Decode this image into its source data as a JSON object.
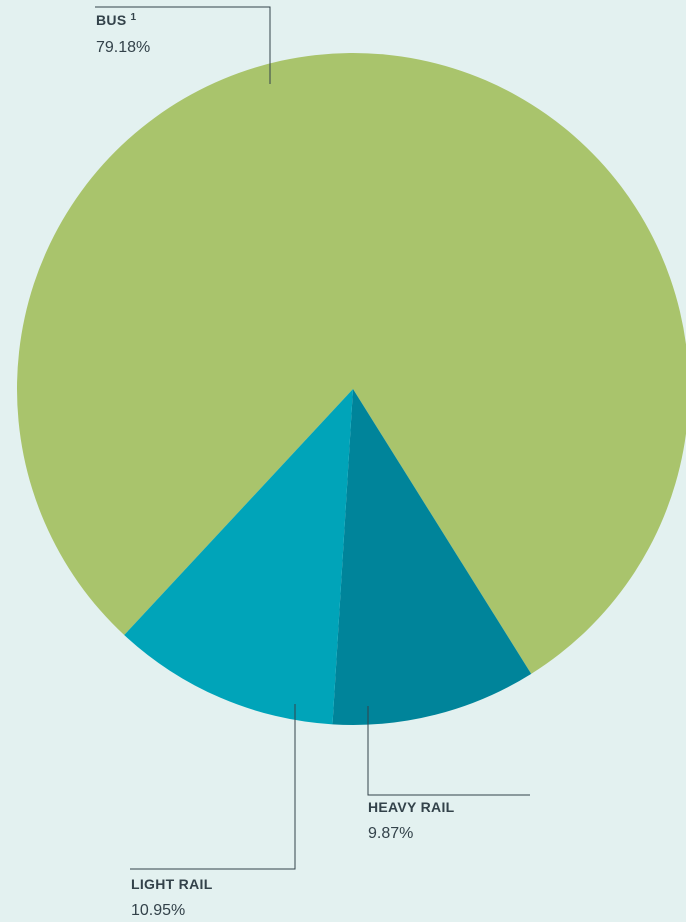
{
  "chart_data": {
    "type": "pie",
    "slices": [
      {
        "label": "BUS",
        "superscript": "1",
        "value": 79.18,
        "value_text": "79.18%",
        "color": "#a9c46c"
      },
      {
        "label": "HEAVY RAIL",
        "value": 9.87,
        "value_text": "9.87%",
        "color": "#00849a"
      },
      {
        "label": "LIGHT RAIL",
        "value": 10.95,
        "value_text": "10.95%",
        "color": "#00a4b9"
      }
    ]
  },
  "theme": {
    "background": "#e3f1f0",
    "label_color": "#33424a"
  }
}
